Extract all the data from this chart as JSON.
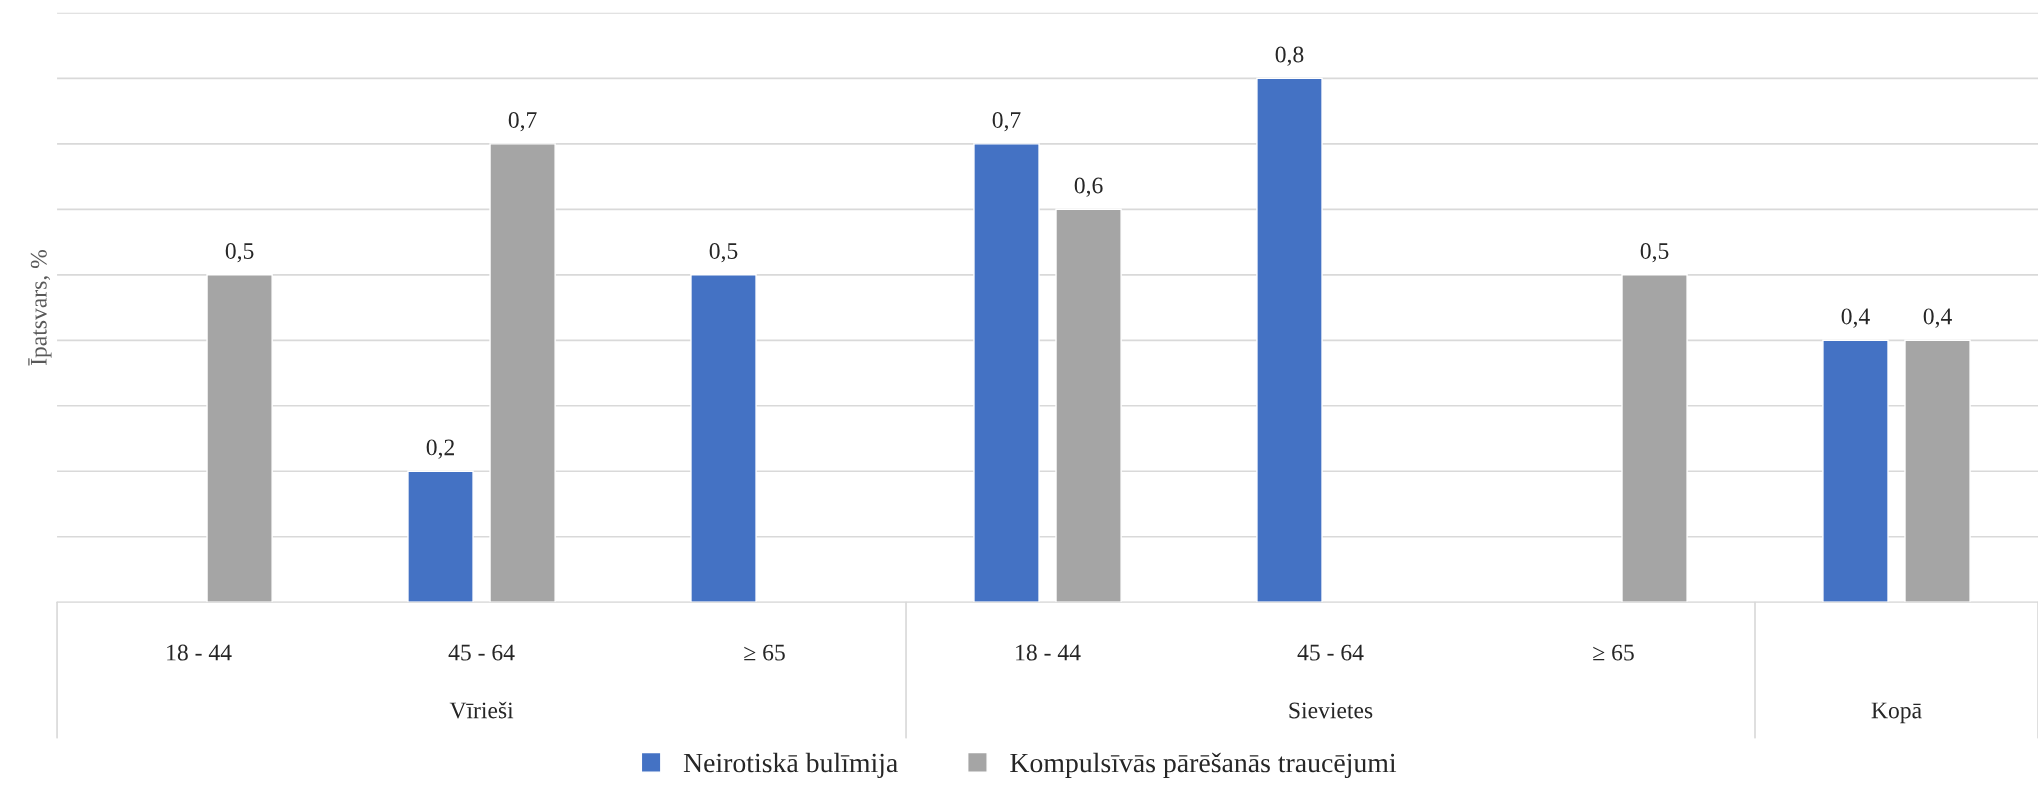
{
  "chart_data": {
    "type": "bar",
    "ylabel": "Īpatsvars, %",
    "categories": [
      "18 - 44",
      "45 - 64",
      "≥ 65",
      "18 - 44",
      "45 - 64",
      "≥ 65",
      null
    ],
    "annotations": [
      "Vīrieši",
      "Sievietes",
      "Kopā"
    ],
    "series": [
      {
        "name": "Neirotiskā bulīmija",
        "color": "#4472c4",
        "values": [
          null,
          0.2,
          0.5,
          0.7,
          0.8,
          null,
          0.4
        ],
        "value_labels": [
          null,
          "0,2",
          "0,5",
          "0,7",
          "0,8",
          null,
          "0,4"
        ]
      },
      {
        "name": "Kompulsīvās pārēšanās traucējumi",
        "color": "#a5a5a5",
        "values": [
          0.5,
          0.7,
          null,
          0.6,
          null,
          0.5,
          0.4
        ],
        "value_labels": [
          "0,5",
          "0,7",
          null,
          "0,6",
          null,
          "0,5",
          "0,4"
        ]
      }
    ],
    "ylim": [
      0,
      0.9
    ],
    "yticks": [
      {
        "value": 0,
        "label": null
      },
      {
        "value": 0.1,
        "label": null
      },
      {
        "value": 0.2,
        "label": null
      },
      {
        "value": 0.3,
        "label": null
      },
      {
        "value": 0.4,
        "label": null
      },
      {
        "value": 0.5,
        "label": null
      },
      {
        "value": 0.6,
        "label": null
      },
      {
        "value": 0.7,
        "label": null
      },
      {
        "value": 0.8,
        "label": null
      },
      {
        "value": 0.9,
        "label": null
      }
    ],
    "tick_labels": "x",
    "grid": "y",
    "legend": "bottom"
  }
}
